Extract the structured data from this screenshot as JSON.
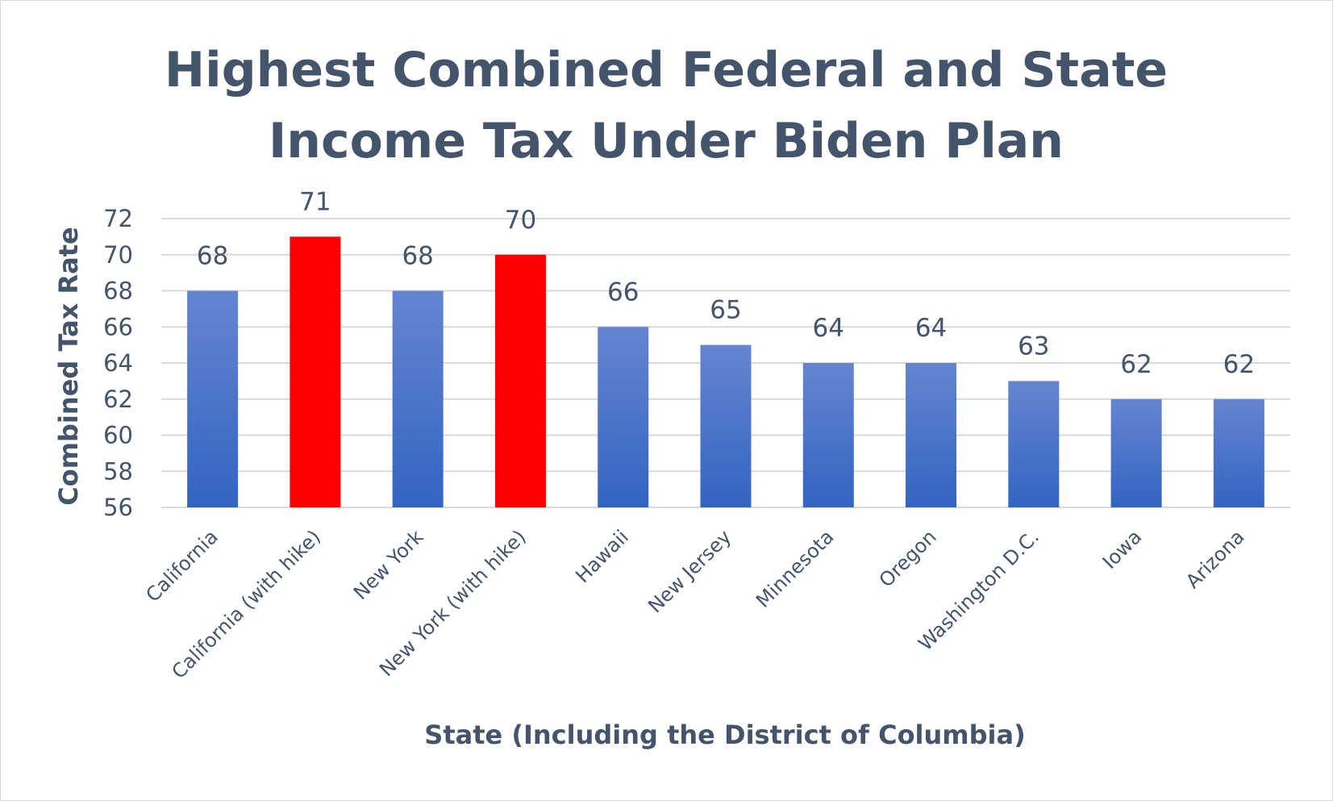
{
  "chart_data": {
    "type": "bar",
    "title": [
      "Highest Combined Federal and State",
      "Income Tax Under Biden Plan"
    ],
    "xlabel": "State (Including the District of Columbia)",
    "ylabel": "Combined Tax Rate",
    "ylim": [
      56,
      72
    ],
    "yticks": [
      56,
      58,
      60,
      62,
      64,
      66,
      68,
      70,
      72
    ],
    "grid": true,
    "legend": "none",
    "categories": [
      "California",
      "California (with hike)",
      "New York",
      "New York (with hike)",
      "Hawaii",
      "New Jersey",
      "Minnesota",
      "Oregon",
      "Washington D.C.",
      "Iowa",
      "Arizona"
    ],
    "values": [
      68,
      71,
      68,
      70,
      66,
      65,
      64,
      64,
      63,
      62,
      62
    ],
    "highlight": [
      false,
      true,
      false,
      true,
      false,
      false,
      false,
      false,
      false,
      false,
      false
    ],
    "colors": {
      "bar_top": "#6585d0",
      "bar_bottom": "#3364c2",
      "highlight": "#ff0000",
      "text": "#44546a",
      "grid": "#d9d9d9"
    }
  }
}
